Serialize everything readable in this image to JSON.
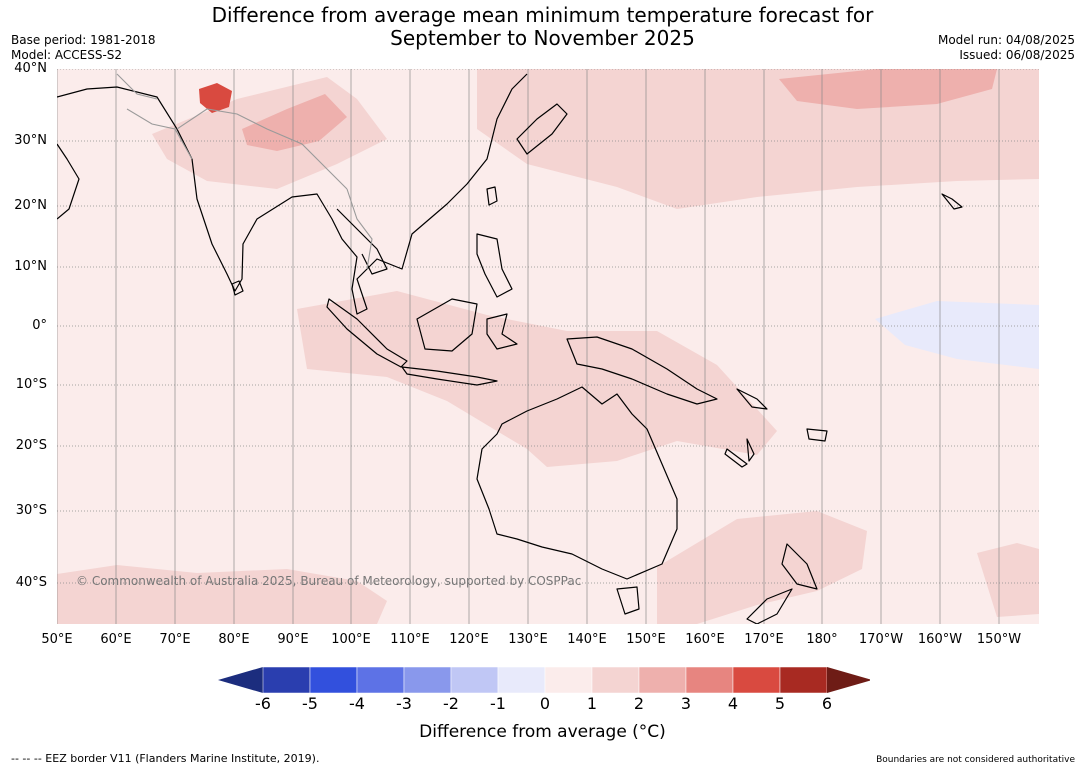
{
  "title": {
    "line1": "Difference from average mean minimum temperature forecast for",
    "line2": "September to November 2025"
  },
  "meta": {
    "base_period": "Base period: 1981-2018",
    "model": "Model: ACCESS-S2",
    "model_run": "Model run: 04/08/2025",
    "issued": "Issued: 06/08/2025"
  },
  "map": {
    "copyright": "© Commonwealth of Australia 2025, Bureau of Meteorology, supported by COSPPac",
    "lat_labels": [
      "40°N",
      "30°N",
      "20°N",
      "10°N",
      "0°",
      "10°S",
      "20°S",
      "30°S",
      "40°S"
    ],
    "lon_labels": [
      "50°E",
      "60°E",
      "70°E",
      "80°E",
      "90°E",
      "100°E",
      "110°E",
      "120°E",
      "130°E",
      "140°E",
      "150°E",
      "160°E",
      "170°E",
      "180°",
      "170°W",
      "160°W",
      "150°W"
    ],
    "colors": {
      "background": "#fbeceb",
      "land_outline": "#000000",
      "border": "#9a9a9a"
    }
  },
  "colorbar": {
    "ticks": [
      "-6",
      "-5",
      "-4",
      "-3",
      "-2",
      "-1",
      "0",
      "1",
      "2",
      "3",
      "4",
      "5",
      "6"
    ],
    "colors": [
      "#1c2d7e",
      "#2a3eaf",
      "#3250dd",
      "#5d72e6",
      "#8998ec",
      "#c0c7f5",
      "#e8eafb",
      "#fbeceb",
      "#f4d4d2",
      "#eeb0ad",
      "#e78580",
      "#d94a40",
      "#a82a22",
      "#6e1c16"
    ],
    "label": "Difference from average ($^\\circ$C)",
    "label_display": "Difference from average (°C)"
  },
  "footer": {
    "eez": "--  --  -- EEZ border V11 (Flanders Marine Institute, 2019).",
    "boundaries": "Boundaries are not considered authoritative"
  }
}
